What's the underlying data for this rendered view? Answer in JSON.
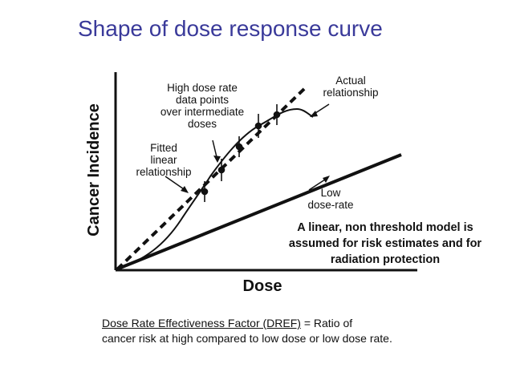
{
  "slide": {
    "title": "Shape of dose response curve"
  },
  "figure": {
    "y_axis_label": "Cancer Incidence",
    "x_axis_label": "Dose",
    "annotations": {
      "high_dose_rate": [
        "High dose rate",
        "data points",
        "over intermediate",
        "doses"
      ],
      "actual": [
        "Actual",
        "relationship"
      ],
      "fitted": [
        "Fitted",
        "linear",
        "relationship"
      ],
      "low_dose_rate": [
        "Low",
        "dose-rate"
      ]
    }
  },
  "note": {
    "lines": [
      "A linear, non threshold model is",
      "assumed for risk estimates and for",
      "radiation protection"
    ]
  },
  "dref": {
    "term": "Dose Rate Effectiveness Factor (DREF)",
    "definition_part1": " = Ratio of",
    "definition_part2": "cancer risk at high compared to low dose or low dose rate."
  },
  "colors": {
    "title": "#3a3a9a",
    "ink": "#111111"
  }
}
